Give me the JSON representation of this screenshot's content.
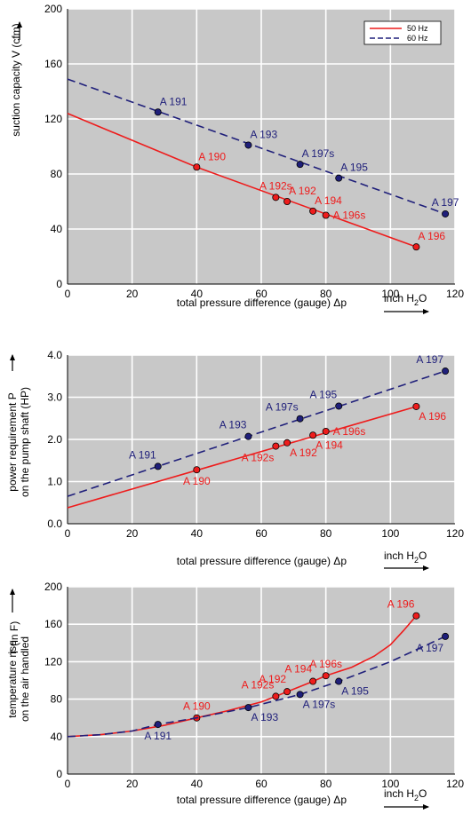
{
  "chart_data": [
    {
      "type": "line",
      "xlabel": "total pressure difference (gauge)  Δp",
      "xunit": "inch H",
      "xunit_sub": "2",
      "xunit_tail": "O",
      "ylabel": [
        "suction capacity V (cfm)"
      ],
      "xlim": [
        0,
        120
      ],
      "ylim": [
        0,
        200
      ],
      "xticks": [
        0,
        20,
        40,
        60,
        80,
        100,
        120
      ],
      "yticks": [
        0,
        40,
        80,
        120,
        160,
        200
      ],
      "decimals": 0,
      "grid": true,
      "legend": {
        "position": "top-right",
        "entries": [
          {
            "label": "50 Hz",
            "color": "#ee1c1c",
            "dash": false
          },
          {
            "label": "60 Hz",
            "color": "#1f1f7a",
            "dash": true
          }
        ]
      },
      "series": [
        {
          "name": "50 Hz",
          "color": "#ee1c1c",
          "dashed": false,
          "curve": [
            [
              0,
              124
            ],
            [
              40,
              85
            ],
            [
              108,
              27
            ]
          ],
          "points": [
            {
              "label": "A 190",
              "x": 40,
              "y": 85,
              "pos": "ar"
            },
            {
              "label": "A 192s",
              "x": 64.5,
              "y": 63,
              "pos": "ac"
            },
            {
              "label": "A 192",
              "x": 68,
              "y": 60,
              "pos": "ar"
            },
            {
              "label": "A 194",
              "x": 76,
              "y": 53,
              "pos": "ar"
            },
            {
              "label": "A 196s",
              "x": 80,
              "y": 50,
              "pos": "r"
            },
            {
              "label": "A 196",
              "x": 108,
              "y": 27,
              "pos": "ar"
            }
          ]
        },
        {
          "name": "60 Hz",
          "color": "#1f1f7a",
          "dashed": true,
          "curve": [
            [
              0,
              149
            ],
            [
              117,
              51
            ]
          ],
          "points": [
            {
              "label": "A 191",
              "x": 28,
              "y": 125,
              "pos": "ar"
            },
            {
              "label": "A 193",
              "x": 56,
              "y": 101,
              "pos": "ar"
            },
            {
              "label": "A 197s",
              "x": 72,
              "y": 87,
              "pos": "ar"
            },
            {
              "label": "A 195",
              "x": 84,
              "y": 77,
              "pos": "ar"
            },
            {
              "label": "A 197",
              "x": 117,
              "y": 51,
              "pos": "ac"
            }
          ]
        }
      ]
    },
    {
      "type": "line",
      "xlabel": "total pressure difference (gauge)  Δp",
      "xunit": "inch H",
      "xunit_sub": "2",
      "xunit_tail": "O",
      "ylabel": [
        "power requirement P",
        "on the pump shaft (HP)"
      ],
      "xlim": [
        0,
        120
      ],
      "ylim": [
        0,
        4
      ],
      "xticks": [
        0,
        20,
        40,
        60,
        80,
        100,
        120
      ],
      "yticks": [
        0,
        1,
        2,
        3,
        4
      ],
      "decimals": 1,
      "grid": true,
      "series": [
        {
          "name": "50 Hz",
          "color": "#ee1c1c",
          "dashed": false,
          "curve": [
            [
              0,
              0.38
            ],
            [
              108,
              2.78
            ]
          ],
          "points": [
            {
              "label": "A 190",
              "x": 40,
              "y": 1.28,
              "pos": "b"
            },
            {
              "label": "A 192s",
              "x": 64.5,
              "y": 1.84,
              "pos": "bl"
            },
            {
              "label": "A 192",
              "x": 68,
              "y": 1.92,
              "pos": "br"
            },
            {
              "label": "A 194",
              "x": 76,
              "y": 2.1,
              "pos": "br"
            },
            {
              "label": "A 196s",
              "x": 80,
              "y": 2.19,
              "pos": "r"
            },
            {
              "label": "A 196",
              "x": 108,
              "y": 2.78,
              "pos": "br"
            }
          ]
        },
        {
          "name": "60 Hz",
          "color": "#1f1f7a",
          "dashed": true,
          "curve": [
            [
              0,
              0.65
            ],
            [
              117,
              3.62
            ]
          ],
          "points": [
            {
              "label": "A 191",
              "x": 28,
              "y": 1.36,
              "pos": "al"
            },
            {
              "label": "A 193",
              "x": 56,
              "y": 2.07,
              "pos": "al"
            },
            {
              "label": "A 197s",
              "x": 72,
              "y": 2.49,
              "pos": "al"
            },
            {
              "label": "A 195",
              "x": 84,
              "y": 2.79,
              "pos": "al"
            },
            {
              "label": "A 197",
              "x": 117,
              "y": 3.62,
              "pos": "al"
            }
          ]
        }
      ]
    },
    {
      "type": "line",
      "xlabel": "total pressure difference (gauge)  Δp",
      "xunit": "inch H",
      "xunit_sub": "2",
      "xunit_tail": "O",
      "ylabel": [
        "temperature rise",
        "on the air handled"
      ],
      "ylabel2": "T    (in F)",
      "xlim": [
        0,
        120
      ],
      "ylim": [
        0,
        200
      ],
      "xticks": [
        0,
        20,
        40,
        60,
        80,
        100,
        120
      ],
      "yticks": [
        0,
        40,
        80,
        120,
        160,
        200
      ],
      "decimals": 0,
      "grid": true,
      "series": [
        {
          "name": "50 Hz",
          "color": "#ee1c1c",
          "dashed": false,
          "curve": [
            [
              0,
              40
            ],
            [
              10,
              42
            ],
            [
              20,
              46
            ],
            [
              30,
              52
            ],
            [
              40,
              60
            ],
            [
              50,
              68
            ],
            [
              60,
              77
            ],
            [
              64.5,
              83
            ],
            [
              68,
              88
            ],
            [
              76,
              99
            ],
            [
              80,
              105
            ],
            [
              88,
              114
            ],
            [
              95,
              126
            ],
            [
              100,
              138
            ],
            [
              104,
              153
            ],
            [
              108,
              169
            ]
          ],
          "points": [
            {
              "label": "A 190",
              "x": 40,
              "y": 60,
              "pos": "a"
            },
            {
              "label": "A 192s",
              "x": 64.5,
              "y": 83,
              "pos": "al"
            },
            {
              "label": "A 192",
              "x": 68,
              "y": 88,
              "pos": "al2"
            },
            {
              "label": "A 194",
              "x": 76,
              "y": 99,
              "pos": "al2"
            },
            {
              "label": "A 196s",
              "x": 80,
              "y": 105,
              "pos": "a"
            },
            {
              "label": "A 196",
              "x": 108,
              "y": 169,
              "pos": "al"
            }
          ]
        },
        {
          "name": "60 Hz",
          "color": "#1f1f7a",
          "dashed": true,
          "curve": [
            [
              0,
              40
            ],
            [
              10,
              42
            ],
            [
              20,
              46
            ],
            [
              28,
              53
            ],
            [
              40,
              60
            ],
            [
              56,
              71
            ],
            [
              72,
              85
            ],
            [
              84,
              99
            ],
            [
              100,
              120
            ],
            [
              117,
              147
            ]
          ],
          "points": [
            {
              "label": "A 191",
              "x": 28,
              "y": 53,
              "pos": "b"
            },
            {
              "label": "A 193",
              "x": 56,
              "y": 71,
              "pos": "br"
            },
            {
              "label": "A 197s",
              "x": 72,
              "y": 85,
              "pos": "br"
            },
            {
              "label": "A 195",
              "x": 84,
              "y": 99,
              "pos": "br"
            },
            {
              "label": "A 197",
              "x": 117,
              "y": 147,
              "pos": "bl"
            }
          ]
        }
      ]
    }
  ]
}
